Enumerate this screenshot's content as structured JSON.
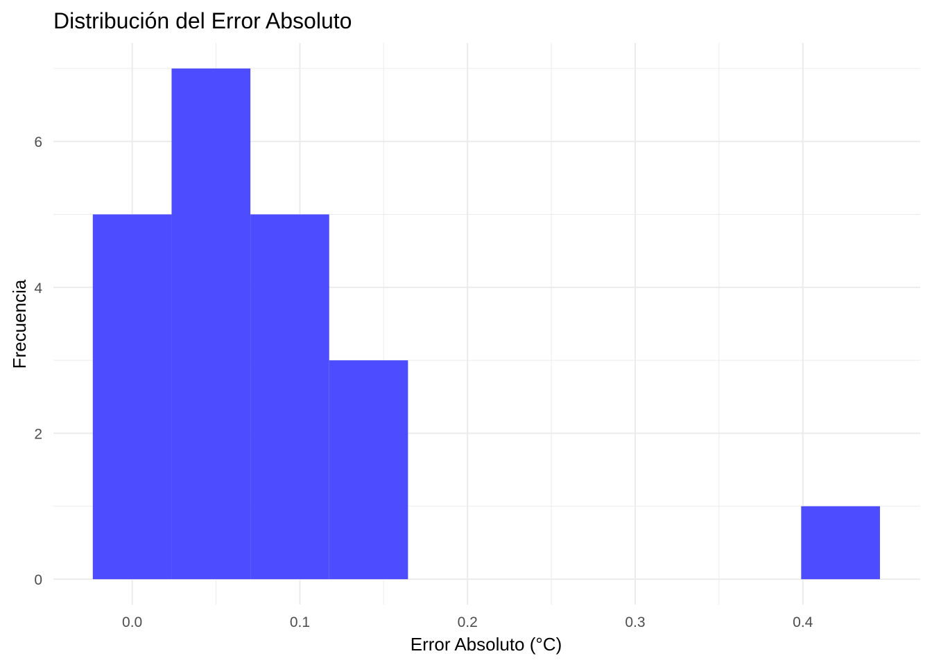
{
  "chart_data": {
    "type": "bar",
    "title": "Distribución del Error Absoluto",
    "xlabel": "Error Absoluto (°C)",
    "ylabel": "Frecuencia",
    "bins": [
      {
        "x_start": -0.0235,
        "x_end": 0.0235,
        "count": 5
      },
      {
        "x_start": 0.0235,
        "x_end": 0.0705,
        "count": 7
      },
      {
        "x_start": 0.0705,
        "x_end": 0.1175,
        "count": 5
      },
      {
        "x_start": 0.1175,
        "x_end": 0.1645,
        "count": 3
      },
      {
        "x_start": 0.399,
        "x_end": 0.446,
        "count": 1
      }
    ],
    "xlim": [
      -0.047,
      0.47
    ],
    "ylim": [
      -0.35,
      7.35
    ],
    "x_ticks": [
      "0.0",
      "0.1",
      "0.2",
      "0.3",
      "0.4"
    ],
    "y_ticks": [
      "0",
      "2",
      "4",
      "6"
    ],
    "grid": true,
    "bar_color": "#4d4dff",
    "grid_color": "#ebebeb"
  }
}
